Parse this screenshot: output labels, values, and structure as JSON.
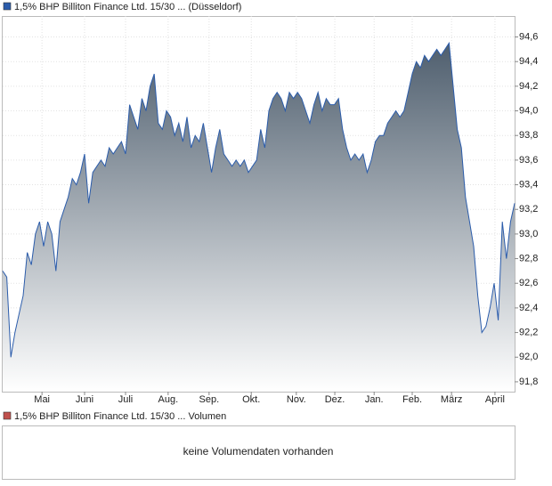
{
  "chart_data": {
    "type": "area-line",
    "legend": "1,5% BHP Billiton Finance Ltd. 15/30 ... (Düsseldorf)",
    "series": [
      {
        "name": "1,5% BHP Billiton Finance Ltd. 15/30 ... (Düsseldorf)",
        "color": "#2b5cab",
        "values": [
          92.7,
          92.65,
          92.0,
          92.2,
          92.35,
          92.5,
          92.85,
          92.75,
          93.0,
          93.1,
          92.9,
          93.1,
          93.0,
          92.7,
          93.1,
          93.2,
          93.3,
          93.45,
          93.4,
          93.5,
          93.65,
          93.25,
          93.5,
          93.55,
          93.6,
          93.55,
          93.7,
          93.65,
          93.7,
          93.75,
          93.65,
          94.05,
          93.95,
          93.85,
          94.1,
          94.0,
          94.2,
          94.3,
          93.9,
          93.85,
          94.0,
          93.95,
          93.8,
          93.9,
          93.75,
          93.95,
          93.7,
          93.8,
          93.75,
          93.9,
          93.7,
          93.5,
          93.7,
          93.85,
          93.65,
          93.6,
          93.55,
          93.6,
          93.55,
          93.6,
          93.5,
          93.55,
          93.6,
          93.85,
          93.7,
          94.0,
          94.1,
          94.15,
          94.1,
          94.0,
          94.15,
          94.1,
          94.15,
          94.1,
          94.0,
          93.9,
          94.05,
          94.15,
          94.0,
          94.1,
          94.05,
          94.05,
          94.1,
          93.85,
          93.7,
          93.6,
          93.65,
          93.6,
          93.65,
          93.5,
          93.6,
          93.75,
          93.8,
          93.8,
          93.9,
          93.95,
          94.0,
          93.95,
          94.0,
          94.15,
          94.3,
          94.4,
          94.35,
          94.45,
          94.4,
          94.45,
          94.5,
          94.45,
          94.5,
          94.55,
          94.2,
          93.85,
          93.7,
          93.3,
          93.1,
          92.9,
          92.5,
          92.2,
          92.25,
          92.4,
          92.6,
          92.3,
          93.1,
          92.8,
          93.1,
          93.25
        ]
      }
    ],
    "xlim": [
      0,
      125
    ],
    "xticks": [
      {
        "value": 9.6,
        "label": "Mai"
      },
      {
        "value": 20,
        "label": "Juni"
      },
      {
        "value": 30,
        "label": "Juli"
      },
      {
        "value": 40.4,
        "label": "Aug."
      },
      {
        "value": 50.4,
        "label": "Sep."
      },
      {
        "value": 60.7,
        "label": "Okt."
      },
      {
        "value": 71.7,
        "label": "Nov."
      },
      {
        "value": 81.1,
        "label": "Dez."
      },
      {
        "value": 90.7,
        "label": "Jan."
      },
      {
        "value": 100,
        "label": "Feb."
      },
      {
        "value": 109.6,
        "label": "März"
      },
      {
        "value": 120.2,
        "label": "April"
      }
    ],
    "ylim": [
      91.72,
      94.77
    ],
    "yticks": [
      {
        "value": 91.8,
        "label": "91,8"
      },
      {
        "value": 92.0,
        "label": "92,0"
      },
      {
        "value": 92.2,
        "label": "92,2"
      },
      {
        "value": 92.4,
        "label": "92,4"
      },
      {
        "value": 92.6,
        "label": "92,6"
      },
      {
        "value": 92.8,
        "label": "92,8"
      },
      {
        "value": 93.0,
        "label": "93,0"
      },
      {
        "value": 93.2,
        "label": "93,2"
      },
      {
        "value": 93.4,
        "label": "93,4"
      },
      {
        "value": 93.6,
        "label": "93,6"
      },
      {
        "value": 93.8,
        "label": "93,8"
      },
      {
        "value": 94.0,
        "label": "94,0"
      },
      {
        "value": 94.2,
        "label": "94,2"
      },
      {
        "value": 94.4,
        "label": "94,4"
      },
      {
        "value": 94.6,
        "label": "94,6"
      }
    ],
    "grid": true
  },
  "volume_panel": {
    "legend": "1,5% BHP Billiton Finance Ltd. 15/30 ... Volumen",
    "color": "#c0504d",
    "message": "keine Volumendaten vorhanden"
  }
}
